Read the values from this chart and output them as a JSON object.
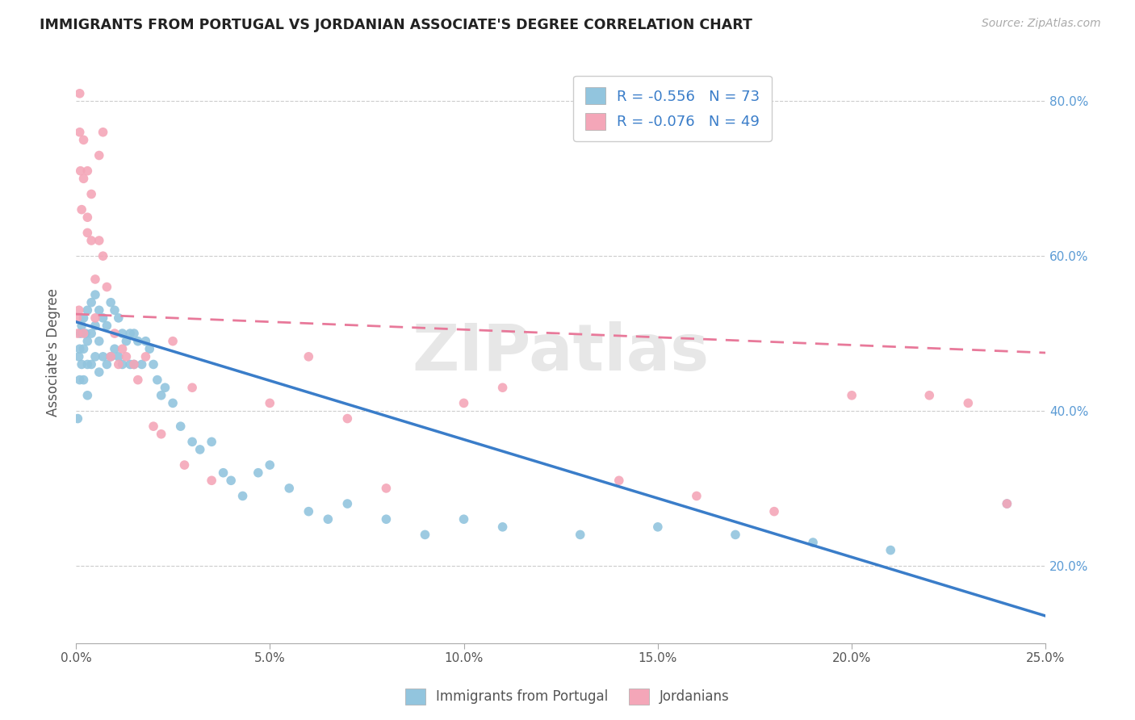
{
  "title": "IMMIGRANTS FROM PORTUGAL VS JORDANIAN ASSOCIATE'S DEGREE CORRELATION CHART",
  "source": "Source: ZipAtlas.com",
  "ylabel": "Associate's Degree",
  "legend_blue_label": "Immigrants from Portugal",
  "legend_pink_label": "Jordanians",
  "blue_color": "#92c5de",
  "pink_color": "#f4a6b8",
  "blue_line_color": "#3a7dc9",
  "pink_line_color": "#e8799a",
  "watermark": "ZIPatlas",
  "xlim": [
    0.0,
    0.25
  ],
  "ylim": [
    0.1,
    0.85
  ],
  "blue_x": [
    0.0005,
    0.0008,
    0.001,
    0.001,
    0.0012,
    0.0015,
    0.0015,
    0.002,
    0.002,
    0.002,
    0.0025,
    0.003,
    0.003,
    0.003,
    0.003,
    0.004,
    0.004,
    0.004,
    0.005,
    0.005,
    0.005,
    0.006,
    0.006,
    0.006,
    0.007,
    0.007,
    0.008,
    0.008,
    0.009,
    0.009,
    0.01,
    0.01,
    0.011,
    0.011,
    0.012,
    0.012,
    0.013,
    0.014,
    0.014,
    0.015,
    0.015,
    0.016,
    0.017,
    0.018,
    0.019,
    0.02,
    0.021,
    0.022,
    0.023,
    0.025,
    0.027,
    0.03,
    0.032,
    0.035,
    0.038,
    0.04,
    0.043,
    0.047,
    0.05,
    0.055,
    0.06,
    0.065,
    0.07,
    0.08,
    0.09,
    0.1,
    0.11,
    0.13,
    0.15,
    0.17,
    0.19,
    0.21,
    0.24
  ],
  "blue_y": [
    0.39,
    0.47,
    0.48,
    0.44,
    0.5,
    0.51,
    0.46,
    0.52,
    0.48,
    0.44,
    0.5,
    0.53,
    0.49,
    0.46,
    0.42,
    0.54,
    0.5,
    0.46,
    0.55,
    0.51,
    0.47,
    0.53,
    0.49,
    0.45,
    0.52,
    0.47,
    0.51,
    0.46,
    0.54,
    0.47,
    0.53,
    0.48,
    0.52,
    0.47,
    0.5,
    0.46,
    0.49,
    0.5,
    0.46,
    0.5,
    0.46,
    0.49,
    0.46,
    0.49,
    0.48,
    0.46,
    0.44,
    0.42,
    0.43,
    0.41,
    0.38,
    0.36,
    0.35,
    0.36,
    0.32,
    0.31,
    0.29,
    0.32,
    0.33,
    0.3,
    0.27,
    0.26,
    0.28,
    0.26,
    0.24,
    0.26,
    0.25,
    0.24,
    0.25,
    0.24,
    0.23,
    0.22,
    0.28
  ],
  "pink_x": [
    0.0003,
    0.0005,
    0.0008,
    0.001,
    0.001,
    0.0012,
    0.0015,
    0.002,
    0.002,
    0.002,
    0.003,
    0.003,
    0.003,
    0.004,
    0.004,
    0.005,
    0.005,
    0.006,
    0.006,
    0.007,
    0.007,
    0.008,
    0.009,
    0.01,
    0.011,
    0.012,
    0.013,
    0.015,
    0.016,
    0.018,
    0.02,
    0.022,
    0.025,
    0.028,
    0.03,
    0.035,
    0.05,
    0.06,
    0.07,
    0.08,
    0.1,
    0.11,
    0.14,
    0.16,
    0.18,
    0.2,
    0.22,
    0.23,
    0.24
  ],
  "pink_y": [
    0.52,
    0.5,
    0.53,
    0.81,
    0.76,
    0.71,
    0.66,
    0.75,
    0.7,
    0.5,
    0.71,
    0.65,
    0.63,
    0.68,
    0.62,
    0.57,
    0.52,
    0.73,
    0.62,
    0.76,
    0.6,
    0.56,
    0.47,
    0.5,
    0.46,
    0.48,
    0.47,
    0.46,
    0.44,
    0.47,
    0.38,
    0.37,
    0.49,
    0.33,
    0.43,
    0.31,
    0.41,
    0.47,
    0.39,
    0.3,
    0.41,
    0.43,
    0.31,
    0.29,
    0.27,
    0.42,
    0.42,
    0.41,
    0.28
  ],
  "blue_trendline_x": [
    0.0,
    0.25
  ],
  "blue_trendline_y": [
    0.515,
    0.135
  ],
  "pink_trendline_x": [
    0.0,
    0.25
  ],
  "pink_trendline_y": [
    0.525,
    0.475
  ],
  "yticks": [
    0.2,
    0.4,
    0.6,
    0.8
  ],
  "xticks": [
    0.0,
    0.05,
    0.1,
    0.15,
    0.2,
    0.25
  ],
  "xtick_labels": [
    "0.0%",
    "5.0%",
    "10.0%",
    "15.0%",
    "20.0%",
    "25.0%"
  ],
  "ytick_labels": [
    "20.0%",
    "40.0%",
    "60.0%",
    "80.0%"
  ]
}
